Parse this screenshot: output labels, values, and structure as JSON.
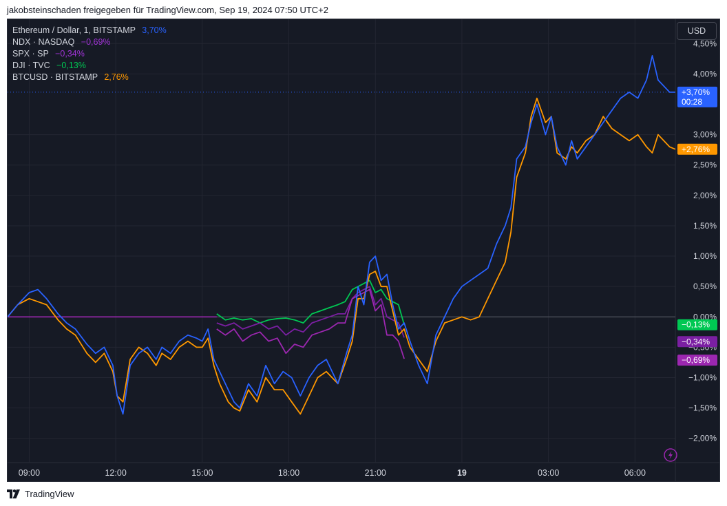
{
  "caption": "jakobsteinschaden freigegeben für TradingView.com, Sep 19, 2024 07:50 UTC+2",
  "currency_button": "USD",
  "footer": {
    "brand": "TradingView"
  },
  "icons": {
    "footer_logo": "tradingview-logo-icon",
    "flash": "lightning-icon"
  },
  "colors": {
    "background": "#161a25",
    "grid": "#232632",
    "text": "#d1d4dc",
    "eth": "#2962ff",
    "ndx": "#9c27b0",
    "spx": "#7b1fa2",
    "dji": "#00c853",
    "btc": "#ff9800"
  },
  "legend": [
    {
      "name": "Ethereum / Dollar, 1, BITSTAMP",
      "value": "3,70%",
      "color": "#2962ff"
    },
    {
      "name": "NDX · NASDAQ",
      "value": "−0,69%",
      "color": "#a033d6"
    },
    {
      "name": "SPX · SP",
      "value": "−0,34%",
      "color": "#a033d6"
    },
    {
      "name": "DJI · TVC",
      "value": "−0,13%",
      "color": "#00c853"
    },
    {
      "name": "BTCUSD · BITSTAMP",
      "value": "2,76%",
      "color": "#ff9800"
    }
  ],
  "chart_data": {
    "type": "line",
    "ylim": [
      -2.4,
      4.9
    ],
    "y_ticks": [
      {
        "v": 4.5,
        "label": "4,50%"
      },
      {
        "v": 4.0,
        "label": "4,00%"
      },
      {
        "v": 3.0,
        "label": "3,00%"
      },
      {
        "v": 2.5,
        "label": "2,50%"
      },
      {
        "v": 2.0,
        "label": "2,00%"
      },
      {
        "v": 1.5,
        "label": "1,50%"
      },
      {
        "v": 1.0,
        "label": "1,00%"
      },
      {
        "v": 0.5,
        "label": "0,50%"
      },
      {
        "v": 0.0,
        "label": "0,00%"
      },
      {
        "v": -0.5,
        "label": "−0,50%"
      },
      {
        "v": -1.0,
        "label": "−1,00%"
      },
      {
        "v": -1.5,
        "label": "−1,50%"
      },
      {
        "v": -2.0,
        "label": "−2,00%"
      }
    ],
    "x_range": [
      8.25,
      31.4
    ],
    "x_ticks": [
      {
        "h": 9,
        "label": "09:00",
        "bold": false
      },
      {
        "h": 12,
        "label": "12:00",
        "bold": false
      },
      {
        "h": 15,
        "label": "15:00",
        "bold": false
      },
      {
        "h": 18,
        "label": "18:00",
        "bold": false
      },
      {
        "h": 21,
        "label": "21:00",
        "bold": false
      },
      {
        "h": 24,
        "label": "19",
        "bold": true
      },
      {
        "h": 27,
        "label": "03:00",
        "bold": false
      },
      {
        "h": 30,
        "label": "06:00",
        "bold": false
      }
    ],
    "price_tags": [
      {
        "v": 3.7,
        "label": "+3,70%",
        "sub": "00:28",
        "color": "#2962ff"
      },
      {
        "v": 2.76,
        "label": "+2,76%",
        "color": "#ff9800"
      },
      {
        "v": -0.13,
        "label": "−0,13%",
        "color": "#00c853"
      },
      {
        "v": -0.34,
        "label": "−0,34%",
        "color": "#7b1fa2"
      },
      {
        "v": -0.69,
        "label": "−0,69%",
        "color": "#9c27b0"
      }
    ],
    "series": [
      {
        "name": "Ethereum / Dollar, 1, BITSTAMP",
        "color": "#2962ff",
        "x": [
          8.25,
          8.6,
          9.0,
          9.3,
          9.6,
          10.0,
          10.3,
          10.6,
          11.0,
          11.3,
          11.6,
          11.9,
          12.05,
          12.25,
          12.5,
          12.8,
          13.1,
          13.4,
          13.6,
          13.9,
          14.2,
          14.5,
          14.8,
          15.0,
          15.2,
          15.4,
          15.6,
          15.9,
          16.1,
          16.3,
          16.6,
          16.9,
          17.2,
          17.5,
          17.8,
          18.1,
          18.4,
          18.7,
          19.0,
          19.3,
          19.5,
          19.7,
          20.0,
          20.2,
          20.4,
          20.6,
          20.8,
          21.0,
          21.2,
          21.4,
          21.6,
          21.8,
          22.0,
          22.2,
          22.5,
          22.8,
          23.1,
          23.4,
          23.7,
          24.0,
          24.3,
          24.6,
          24.9,
          25.2,
          25.5,
          25.7,
          25.9,
          26.2,
          26.4,
          26.6,
          26.9,
          27.1,
          27.3,
          27.6,
          27.8,
          28.0,
          28.3,
          28.6,
          28.9,
          29.2,
          29.5,
          29.8,
          30.1,
          30.4,
          30.6,
          30.8,
          31.0,
          31.2,
          31.4
        ],
        "y": [
          0.0,
          0.2,
          0.4,
          0.45,
          0.3,
          0.05,
          -0.1,
          -0.2,
          -0.45,
          -0.6,
          -0.5,
          -0.8,
          -1.3,
          -1.6,
          -0.8,
          -0.6,
          -0.5,
          -0.7,
          -0.5,
          -0.6,
          -0.4,
          -0.3,
          -0.35,
          -0.4,
          -0.2,
          -0.7,
          -0.9,
          -1.2,
          -1.4,
          -1.5,
          -1.1,
          -1.3,
          -0.8,
          -1.1,
          -0.9,
          -1.0,
          -1.3,
          -1.0,
          -0.8,
          -0.7,
          -0.9,
          -1.1,
          -0.6,
          -0.3,
          0.5,
          0.2,
          0.9,
          1.0,
          0.6,
          0.7,
          0.2,
          -0.2,
          -0.1,
          -0.4,
          -0.8,
          -1.1,
          -0.3,
          0.0,
          0.3,
          0.5,
          0.6,
          0.7,
          0.8,
          1.2,
          1.5,
          1.8,
          2.6,
          2.8,
          3.2,
          3.5,
          3.0,
          3.3,
          2.8,
          2.5,
          2.9,
          2.6,
          2.8,
          3.0,
          3.2,
          3.4,
          3.6,
          3.7,
          3.6,
          3.9,
          4.3,
          3.9,
          3.8,
          3.7,
          3.7
        ]
      },
      {
        "name": "BTCUSD · BITSTAMP",
        "color": "#ff9800",
        "x": [
          8.25,
          8.6,
          9.0,
          9.3,
          9.6,
          10.0,
          10.3,
          10.6,
          11.0,
          11.3,
          11.6,
          11.9,
          12.05,
          12.25,
          12.5,
          12.8,
          13.1,
          13.4,
          13.6,
          13.9,
          14.2,
          14.5,
          14.8,
          15.0,
          15.2,
          15.4,
          15.6,
          15.9,
          16.1,
          16.3,
          16.6,
          16.9,
          17.2,
          17.5,
          17.8,
          18.1,
          18.4,
          18.7,
          19.0,
          19.3,
          19.5,
          19.7,
          20.0,
          20.2,
          20.4,
          20.6,
          20.8,
          21.0,
          21.2,
          21.4,
          21.6,
          21.8,
          22.0,
          22.2,
          22.5,
          22.8,
          23.1,
          23.4,
          23.7,
          24.0,
          24.3,
          24.6,
          24.9,
          25.2,
          25.5,
          25.7,
          25.9,
          26.2,
          26.4,
          26.6,
          26.9,
          27.1,
          27.3,
          27.6,
          27.8,
          28.0,
          28.3,
          28.6,
          28.9,
          29.2,
          29.5,
          29.8,
          30.1,
          30.4,
          30.6,
          30.8,
          31.0,
          31.2,
          31.4
        ],
        "y": [
          0.0,
          0.2,
          0.3,
          0.25,
          0.2,
          -0.05,
          -0.2,
          -0.3,
          -0.6,
          -0.75,
          -0.6,
          -0.9,
          -1.3,
          -1.4,
          -0.7,
          -0.5,
          -0.6,
          -0.8,
          -0.6,
          -0.7,
          -0.5,
          -0.4,
          -0.5,
          -0.5,
          -0.35,
          -0.8,
          -1.1,
          -1.4,
          -1.5,
          -1.55,
          -1.2,
          -1.4,
          -1.0,
          -1.2,
          -1.2,
          -1.4,
          -1.6,
          -1.3,
          -1.0,
          -0.9,
          -1.0,
          -1.1,
          -0.7,
          -0.4,
          0.3,
          0.3,
          0.7,
          0.75,
          0.5,
          0.5,
          0.1,
          -0.3,
          -0.2,
          -0.5,
          -0.7,
          -0.9,
          -0.4,
          -0.1,
          -0.05,
          0.0,
          -0.05,
          0.0,
          0.3,
          0.6,
          0.9,
          1.4,
          2.3,
          2.7,
          3.3,
          3.6,
          3.2,
          3.3,
          2.7,
          2.6,
          2.8,
          2.7,
          2.9,
          3.0,
          3.3,
          3.1,
          3.0,
          2.9,
          3.0,
          2.8,
          2.7,
          3.0,
          2.9,
          2.8,
          2.76
        ]
      },
      {
        "name": "DJI · TVC",
        "color": "#00c853",
        "x": [
          15.5,
          15.8,
          16.1,
          16.4,
          16.7,
          17.0,
          17.3,
          17.6,
          17.9,
          18.2,
          18.5,
          18.8,
          19.1,
          19.4,
          19.7,
          19.95,
          20.2,
          20.4,
          20.6,
          20.8,
          21.0,
          21.2,
          21.4,
          21.6,
          21.8,
          22.0
        ],
        "y": [
          0.05,
          -0.05,
          -0.02,
          -0.05,
          -0.03,
          -0.1,
          -0.05,
          -0.03,
          -0.02,
          -0.05,
          -0.1,
          0.05,
          0.1,
          0.15,
          0.2,
          0.25,
          0.45,
          0.5,
          0.55,
          0.6,
          0.4,
          0.45,
          0.3,
          0.25,
          0.2,
          -0.13
        ]
      },
      {
        "name": "SPX · SP",
        "color": "#7b1fa2",
        "x": [
          15.5,
          15.8,
          16.1,
          16.4,
          16.7,
          17.0,
          17.3,
          17.6,
          17.9,
          18.2,
          18.5,
          18.8,
          19.1,
          19.4,
          19.7,
          19.95,
          20.2,
          20.4,
          20.6,
          20.8,
          21.0,
          21.2,
          21.4,
          21.6,
          21.8,
          22.0
        ],
        "y": [
          -0.1,
          -0.15,
          -0.1,
          -0.2,
          -0.15,
          -0.1,
          -0.2,
          -0.15,
          -0.3,
          -0.2,
          -0.25,
          -0.1,
          -0.05,
          0.0,
          0.05,
          0.05,
          0.3,
          0.4,
          0.45,
          0.5,
          0.2,
          0.3,
          0.0,
          -0.05,
          -0.1,
          -0.34
        ]
      },
      {
        "name": "NDX · NASDAQ",
        "color": "#9c27b0",
        "x": [
          15.5,
          15.8,
          16.1,
          16.4,
          16.7,
          17.0,
          17.3,
          17.6,
          17.9,
          18.2,
          18.5,
          18.8,
          19.1,
          19.4,
          19.7,
          19.95,
          20.2,
          20.4,
          20.6,
          20.8,
          21.0,
          21.2,
          21.4,
          21.6,
          21.8,
          22.0
        ],
        "y": [
          -0.2,
          -0.3,
          -0.2,
          -0.4,
          -0.3,
          -0.25,
          -0.4,
          -0.35,
          -0.6,
          -0.45,
          -0.5,
          -0.3,
          -0.25,
          -0.2,
          -0.1,
          -0.1,
          0.3,
          0.35,
          0.4,
          0.45,
          0.1,
          0.2,
          -0.3,
          -0.3,
          -0.4,
          -0.69
        ]
      }
    ]
  }
}
